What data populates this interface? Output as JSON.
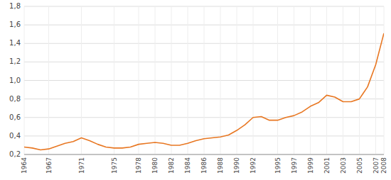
{
  "chart_data": {
    "type": "line",
    "x": [
      1964,
      1965,
      1966,
      1967,
      1968,
      1969,
      1970,
      1971,
      1972,
      1973,
      1974,
      1975,
      1976,
      1977,
      1978,
      1979,
      1980,
      1981,
      1982,
      1983,
      1984,
      1985,
      1986,
      1987,
      1988,
      1989,
      1990,
      1991,
      1992,
      1993,
      1994,
      1995,
      1996,
      1997,
      1998,
      1999,
      2000,
      2001,
      2002,
      2003,
      2004,
      2005,
      2006,
      2007,
      2008
    ],
    "values": [
      0.28,
      0.27,
      0.25,
      0.26,
      0.29,
      0.32,
      0.34,
      0.38,
      0.35,
      0.31,
      0.28,
      0.27,
      0.27,
      0.28,
      0.31,
      0.32,
      0.33,
      0.32,
      0.3,
      0.3,
      0.32,
      0.35,
      0.37,
      0.38,
      0.39,
      0.41,
      0.46,
      0.52,
      0.6,
      0.61,
      0.57,
      0.57,
      0.6,
      0.62,
      0.66,
      0.72,
      0.76,
      0.84,
      0.82,
      0.77,
      0.77,
      0.8,
      0.93,
      1.17,
      1.51
    ],
    "color": "#E87722",
    "xlim": [
      1964,
      2008
    ],
    "xticks": [
      1964,
      1967,
      1971,
      1975,
      1978,
      1980,
      1982,
      1984,
      1986,
      1988,
      1990,
      1992,
      1995,
      1997,
      1999,
      2001,
      2003,
      2005,
      2007,
      2008
    ],
    "ylim": [
      0.2,
      1.8
    ],
    "yticks": [
      {
        "value": 0.2,
        "label": "0,2"
      },
      {
        "value": 0.4,
        "label": "0,4"
      },
      {
        "value": 0.6,
        "label": "0,6"
      },
      {
        "value": 0.8,
        "label": "0,8"
      },
      {
        "value": 1.0,
        "label": "1,0"
      },
      {
        "value": 1.2,
        "label": "1,2"
      },
      {
        "value": 1.4,
        "label": "1,4"
      },
      {
        "value": 1.6,
        "label": "1,6"
      },
      {
        "value": 1.8,
        "label": "1,8"
      }
    ],
    "grid": true
  }
}
